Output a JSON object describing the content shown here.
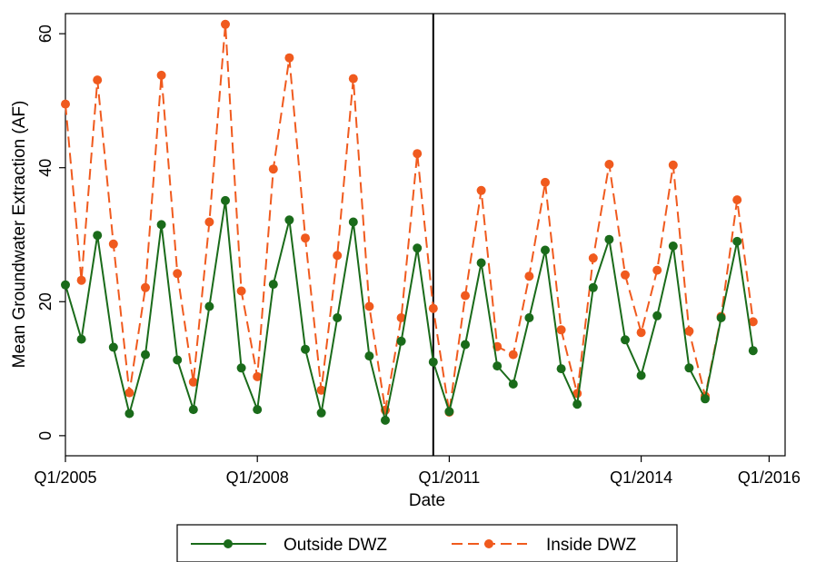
{
  "chart_data": {
    "type": "line",
    "title": "",
    "xlabel": "Date",
    "ylabel": "Mean Groundwater Extraction (AF)",
    "xlim": [
      2005.0,
      2016.25
    ],
    "ylim": [
      -3,
      63
    ],
    "x_ticks": [
      {
        "value": 2005.0,
        "label": "Q1/2005"
      },
      {
        "value": 2008.0,
        "label": "Q1/2008"
      },
      {
        "value": 2011.0,
        "label": "Q1/2011"
      },
      {
        "value": 2014.0,
        "label": "Q1/2014"
      },
      {
        "value": 2016.0,
        "label": "Q1/2016"
      }
    ],
    "y_ticks": [
      {
        "value": 0,
        "label": "0"
      },
      {
        "value": 20,
        "label": "20"
      },
      {
        "value": 40,
        "label": "40"
      },
      {
        "value": 60,
        "label": "60"
      }
    ],
    "vertical_line_x": 2010.75,
    "grid": false,
    "legend_position": "bottom",
    "x": [
      2005.0,
      2005.25,
      2005.5,
      2005.75,
      2006.0,
      2006.25,
      2006.5,
      2006.75,
      2007.0,
      2007.25,
      2007.5,
      2007.75,
      2008.0,
      2008.25,
      2008.5,
      2008.75,
      2009.0,
      2009.25,
      2009.5,
      2009.75,
      2010.0,
      2010.25,
      2010.5,
      2010.75,
      2011.0,
      2011.25,
      2011.5,
      2011.75,
      2012.0,
      2012.25,
      2012.5,
      2012.75,
      2013.0,
      2013.25,
      2013.5,
      2013.75,
      2014.0,
      2014.25,
      2014.5,
      2014.75,
      2015.0,
      2015.25,
      2015.5,
      2015.75
    ],
    "series": [
      {
        "name": "Outside DWZ",
        "color": "#1a6b1a",
        "style": "solid",
        "values": [
          22.5,
          14.4,
          29.9,
          13.2,
          3.3,
          12.1,
          31.5,
          11.3,
          3.9,
          19.3,
          35.1,
          10.1,
          3.9,
          22.6,
          32.2,
          12.9,
          3.4,
          17.6,
          31.9,
          11.9,
          2.3,
          14.1,
          28.0,
          11.0,
          3.6,
          13.6,
          25.8,
          10.4,
          7.7,
          17.6,
          27.7,
          10.0,
          4.7,
          22.1,
          29.3,
          14.3,
          9.0,
          17.9,
          28.3,
          10.1,
          5.5,
          17.6,
          29.0,
          12.7
        ]
      },
      {
        "name": "Inside DWZ",
        "color": "#f05a1e",
        "style": "dashed",
        "values": [
          49.5,
          23.2,
          53.1,
          28.6,
          6.4,
          22.1,
          53.8,
          24.2,
          8.0,
          31.9,
          61.4,
          21.6,
          8.8,
          39.8,
          56.4,
          29.5,
          6.8,
          26.9,
          53.3,
          19.3,
          3.8,
          17.6,
          42.1,
          19.0,
          3.5,
          20.9,
          36.6,
          13.3,
          12.1,
          23.8,
          37.8,
          15.8,
          6.3,
          26.5,
          40.5,
          24.0,
          15.4,
          24.7,
          40.4,
          15.6,
          5.9,
          17.8,
          35.2,
          17.0
        ]
      }
    ]
  }
}
